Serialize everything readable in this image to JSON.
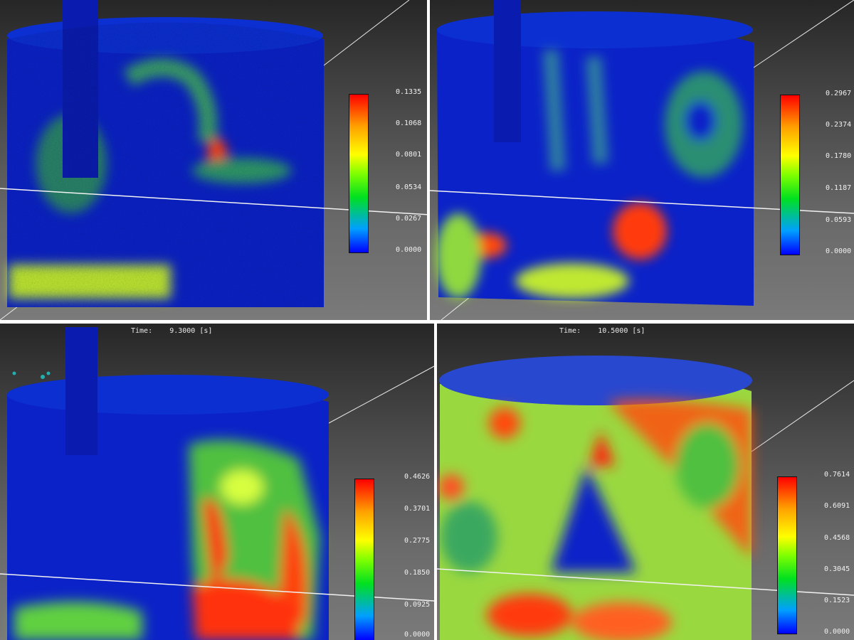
{
  "panels": [
    {
      "id": "p1",
      "time_label": "",
      "time_value": "",
      "colorbar_ticks": [
        "0.1335",
        "0.1068",
        "0.0801",
        "0.0534",
        "0.0267",
        "0.0000"
      ]
    },
    {
      "id": "p2",
      "time_label": "",
      "time_value": "",
      "colorbar_ticks": [
        "0.2967",
        "0.2374",
        "0.1780",
        "0.1187",
        "0.0593",
        "0.0000"
      ]
    },
    {
      "id": "p3",
      "time_label": "Time:",
      "time_value": "9.3000 [s]",
      "colorbar_ticks": [
        "0.4626",
        "0.3701",
        "0.2775",
        "0.1850",
        "0.0925",
        "0.0000"
      ]
    },
    {
      "id": "p4",
      "time_label": "Time:",
      "time_value": "10.5000 [s]",
      "colorbar_ticks": [
        "0.7614",
        "0.6091",
        "0.4568",
        "0.3045",
        "0.1523",
        "0.0000"
      ]
    }
  ],
  "colors": {
    "low": "#0000ff",
    "mid": "#00e020",
    "high_mid": "#ffff00",
    "high": "#ff0000"
  }
}
